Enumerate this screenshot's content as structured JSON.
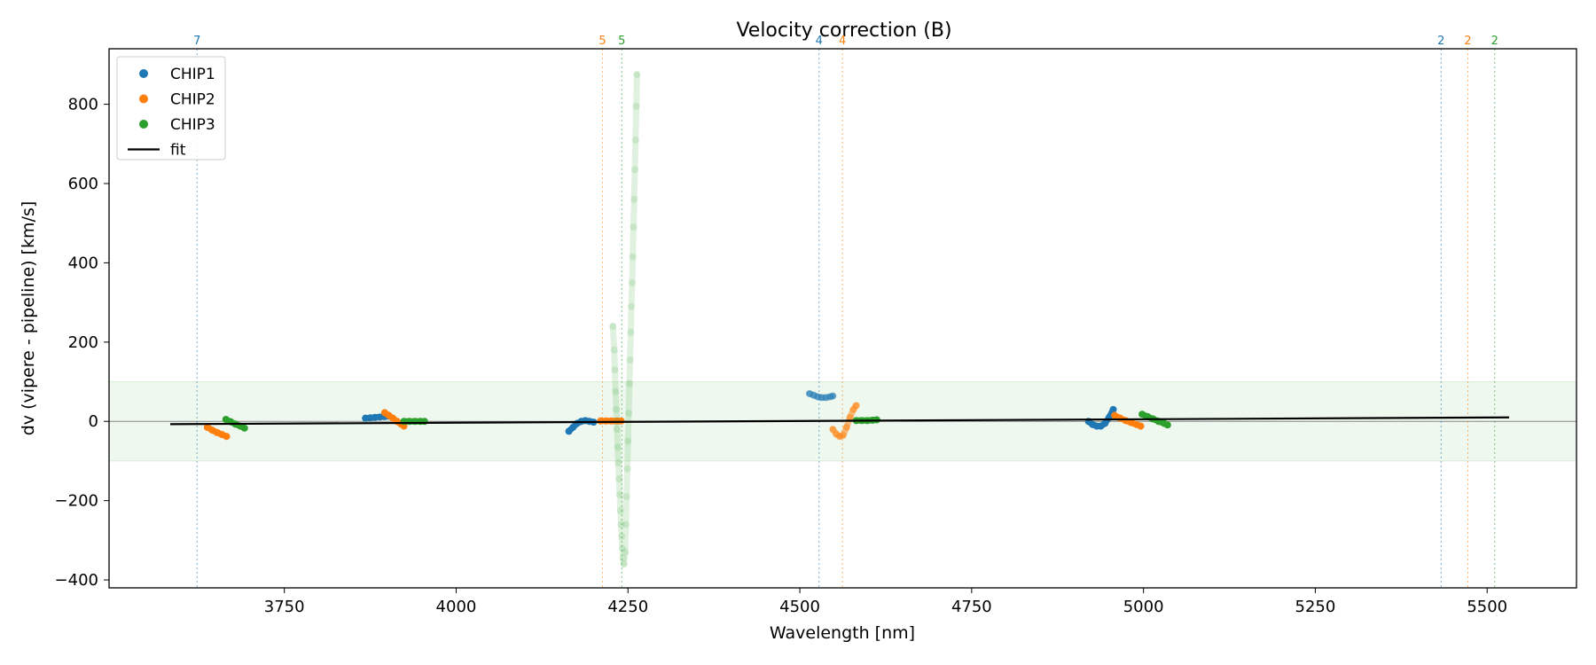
{
  "chart_data": {
    "type": "scatter",
    "title": "Velocity correction (B)",
    "xlabel": "Wavelength [nm]",
    "ylabel": "dv (vipere - pipeline) [km/s]",
    "xlim": [
      3495,
      5630
    ],
    "ylim": [
      -420,
      940
    ],
    "xticks": [
      3750,
      4000,
      4250,
      4500,
      4750,
      5000,
      5250,
      5500
    ],
    "yticks": [
      -400,
      -200,
      0,
      200,
      400,
      600,
      800
    ],
    "band": [
      -100,
      100
    ],
    "colors": {
      "CHIP1": "#1f77b4",
      "CHIP2": "#ff7f0e",
      "CHIP3": "#2ca02c",
      "fit": "#000000",
      "band": "#2ca02c",
      "zero": "#888888"
    },
    "legend": {
      "position": "top-left",
      "entries": [
        "CHIP1",
        "CHIP2",
        "CHIP3",
        "fit"
      ]
    },
    "fit": {
      "x": [
        3584,
        5532
      ],
      "y": [
        -7,
        10
      ]
    },
    "order_lines": [
      {
        "chip": "CHIP1",
        "x": 3623,
        "label": "7"
      },
      {
        "chip": "CHIP2",
        "x": 4213,
        "label": "5"
      },
      {
        "chip": "CHIP3",
        "x": 4241,
        "label": "5"
      },
      {
        "chip": "CHIP1",
        "x": 4528,
        "label": "4"
      },
      {
        "chip": "CHIP2",
        "x": 4562,
        "label": "4"
      },
      {
        "chip": "CHIP1",
        "x": 5433,
        "label": "2"
      },
      {
        "chip": "CHIP2",
        "x": 5472,
        "label": "2"
      },
      {
        "chip": "CHIP3",
        "x": 5511,
        "label": "2"
      }
    ],
    "series": [
      {
        "name": "CHIP1",
        "segments": [
          {
            "alpha": 1.0,
            "points": [
              [
                3868,
                8
              ],
              [
                3875,
                9
              ],
              [
                3882,
                10
              ],
              [
                3889,
                11
              ],
              [
                3896,
                12
              ],
              [
                3902,
                13
              ]
            ]
          },
          {
            "alpha": 1.0,
            "points": [
              [
                4164,
                -25
              ],
              [
                4170,
                -15
              ],
              [
                4176,
                -5
              ],
              [
                4182,
                0
              ],
              [
                4188,
                2
              ],
              [
                4194,
                0
              ],
              [
                4200,
                -2
              ]
            ]
          },
          {
            "alpha": 0.5,
            "points": [
              [
                4514,
                70
              ],
              [
                4520,
                66
              ],
              [
                4526,
                62
              ],
              [
                4532,
                60
              ],
              [
                4538,
                60
              ],
              [
                4544,
                62
              ],
              [
                4548,
                64
              ]
            ]
          },
          {
            "alpha": 1.0,
            "points": [
              [
                4920,
                0
              ],
              [
                4926,
                -8
              ],
              [
                4932,
                -12
              ],
              [
                4938,
                -12
              ],
              [
                4944,
                -5
              ],
              [
                4950,
                10
              ],
              [
                4956,
                30
              ]
            ]
          }
        ]
      },
      {
        "name": "CHIP2",
        "segments": [
          {
            "alpha": 1.0,
            "points": [
              [
                3638,
                -15
              ],
              [
                3645,
                -22
              ],
              [
                3652,
                -28
              ],
              [
                3659,
                -33
              ],
              [
                3666,
                -38
              ]
            ]
          },
          {
            "alpha": 1.0,
            "points": [
              [
                3896,
                22
              ],
              [
                3902,
                15
              ],
              [
                3908,
                8
              ],
              [
                3914,
                0
              ],
              [
                3920,
                -7
              ],
              [
                3924,
                -12
              ]
            ]
          },
          {
            "alpha": 1.0,
            "points": [
              [
                4210,
                1
              ],
              [
                4218,
                1
              ],
              [
                4226,
                1
              ],
              [
                4234,
                1
              ],
              [
                4240,
                1
              ]
            ]
          },
          {
            "alpha": 0.5,
            "points": [
              [
                4548,
                -20
              ],
              [
                4553,
                -32
              ],
              [
                4558,
                -38
              ],
              [
                4563,
                -35
              ],
              [
                4568,
                -15
              ],
              [
                4573,
                10
              ],
              [
                4578,
                30
              ],
              [
                4582,
                40
              ]
            ]
          },
          {
            "alpha": 1.0,
            "points": [
              [
                4958,
                15
              ],
              [
                4966,
                8
              ],
              [
                4974,
                2
              ],
              [
                4982,
                -3
              ],
              [
                4990,
                -8
              ],
              [
                4996,
                -12
              ]
            ]
          }
        ]
      },
      {
        "name": "CHIP3",
        "segments": [
          {
            "alpha": 1.0,
            "points": [
              [
                3665,
                5
              ],
              [
                3672,
                -1
              ],
              [
                3679,
                -7
              ],
              [
                3686,
                -12
              ],
              [
                3692,
                -17
              ]
            ]
          },
          {
            "alpha": 1.0,
            "points": [
              [
                3924,
                0
              ],
              [
                3932,
                0
              ],
              [
                3940,
                0
              ],
              [
                3948,
                0
              ],
              [
                3954,
                0
              ]
            ]
          },
          {
            "alpha": 0.15,
            "points": [
              [
                4228,
                240
              ],
              [
                4230,
                180
              ],
              [
                4231,
                130
              ],
              [
                4232,
                75
              ],
              [
                4233,
                30
              ],
              [
                4234,
                -20
              ],
              [
                4235,
                -65
              ],
              [
                4236,
                -105
              ],
              [
                4237,
                -145
              ],
              [
                4238,
                -185
              ],
              [
                4239,
                -225
              ],
              [
                4240,
                -260
              ],
              [
                4241,
                -290
              ],
              [
                4242,
                -320
              ],
              [
                4243,
                -345
              ],
              [
                4244,
                -360
              ],
              [
                4246,
                -330
              ],
              [
                4247,
                -260
              ],
              [
                4248,
                -190
              ],
              [
                4249,
                -120
              ],
              [
                4250,
                -50
              ],
              [
                4251,
                20
              ],
              [
                4252,
                95
              ],
              [
                4253,
                155
              ],
              [
                4254,
                225
              ],
              [
                4255,
                290
              ],
              [
                4256,
                350
              ],
              [
                4257,
                415
              ],
              [
                4258,
                490
              ],
              [
                4259,
                560
              ],
              [
                4260,
                635
              ],
              [
                4261,
                710
              ],
              [
                4262,
                795
              ],
              [
                4263,
                875
              ]
            ]
          },
          {
            "alpha": 1.0,
            "points": [
              [
                4582,
                2
              ],
              [
                4590,
                2
              ],
              [
                4598,
                2
              ],
              [
                4606,
                3
              ],
              [
                4612,
                4
              ]
            ]
          },
          {
            "alpha": 1.0,
            "points": [
              [
                4998,
                18
              ],
              [
                5006,
                12
              ],
              [
                5014,
                6
              ],
              [
                5022,
                0
              ],
              [
                5030,
                -5
              ],
              [
                5035,
                -9
              ]
            ]
          }
        ]
      }
    ]
  }
}
